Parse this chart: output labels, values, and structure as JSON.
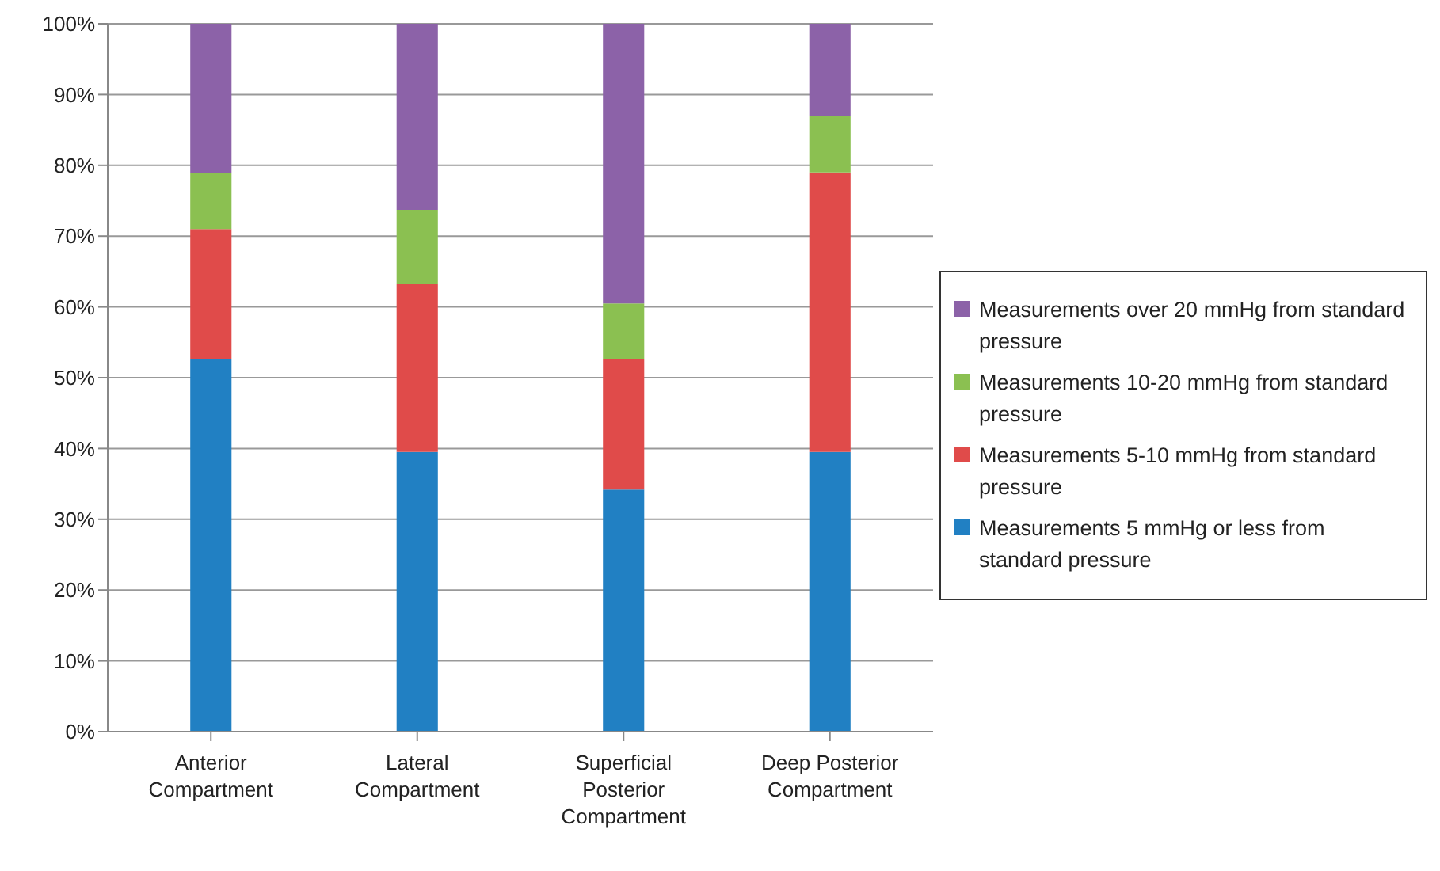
{
  "chart_data": {
    "type": "bar",
    "stacked": true,
    "categories": [
      "Anterior Compartment",
      "Lateral Compartment",
      "Superficial Posterior Compartment",
      "Deep Posterior Compartment"
    ],
    "series": [
      {
        "name": "Measurements 5 mmHg or less from standard pressure",
        "color": "#2180c3",
        "values": [
          52.6,
          39.5,
          34.2,
          39.5
        ]
      },
      {
        "name": "Measurements 5-10 mmHg from standard pressure",
        "color": "#e04b4a",
        "values": [
          18.4,
          23.7,
          18.4,
          39.5
        ]
      },
      {
        "name": "Measurements 10-20 mmHg from standard pressure",
        "color": "#8bc051",
        "values": [
          7.9,
          10.5,
          7.9,
          7.9
        ]
      },
      {
        "name": "Measurements over 20 mmHg from standard pressure",
        "color": "#8c62a8",
        "values": [
          21.1,
          26.3,
          39.5,
          13.2
        ]
      }
    ],
    "ylim": [
      0,
      100
    ],
    "yticks": [
      {
        "value": 0,
        "label": "0%"
      },
      {
        "value": 10,
        "label": "10%"
      },
      {
        "value": 20,
        "label": "20%"
      },
      {
        "value": 30,
        "label": "30%"
      },
      {
        "value": 40,
        "label": "40%"
      },
      {
        "value": 50,
        "label": "50%"
      },
      {
        "value": 60,
        "label": "60%"
      },
      {
        "value": 70,
        "label": "70%"
      },
      {
        "value": 80,
        "label": "80%"
      },
      {
        "value": 90,
        "label": "90%"
      },
      {
        "value": 100,
        "label": "100%"
      }
    ],
    "grid": "y",
    "legend": "right"
  }
}
